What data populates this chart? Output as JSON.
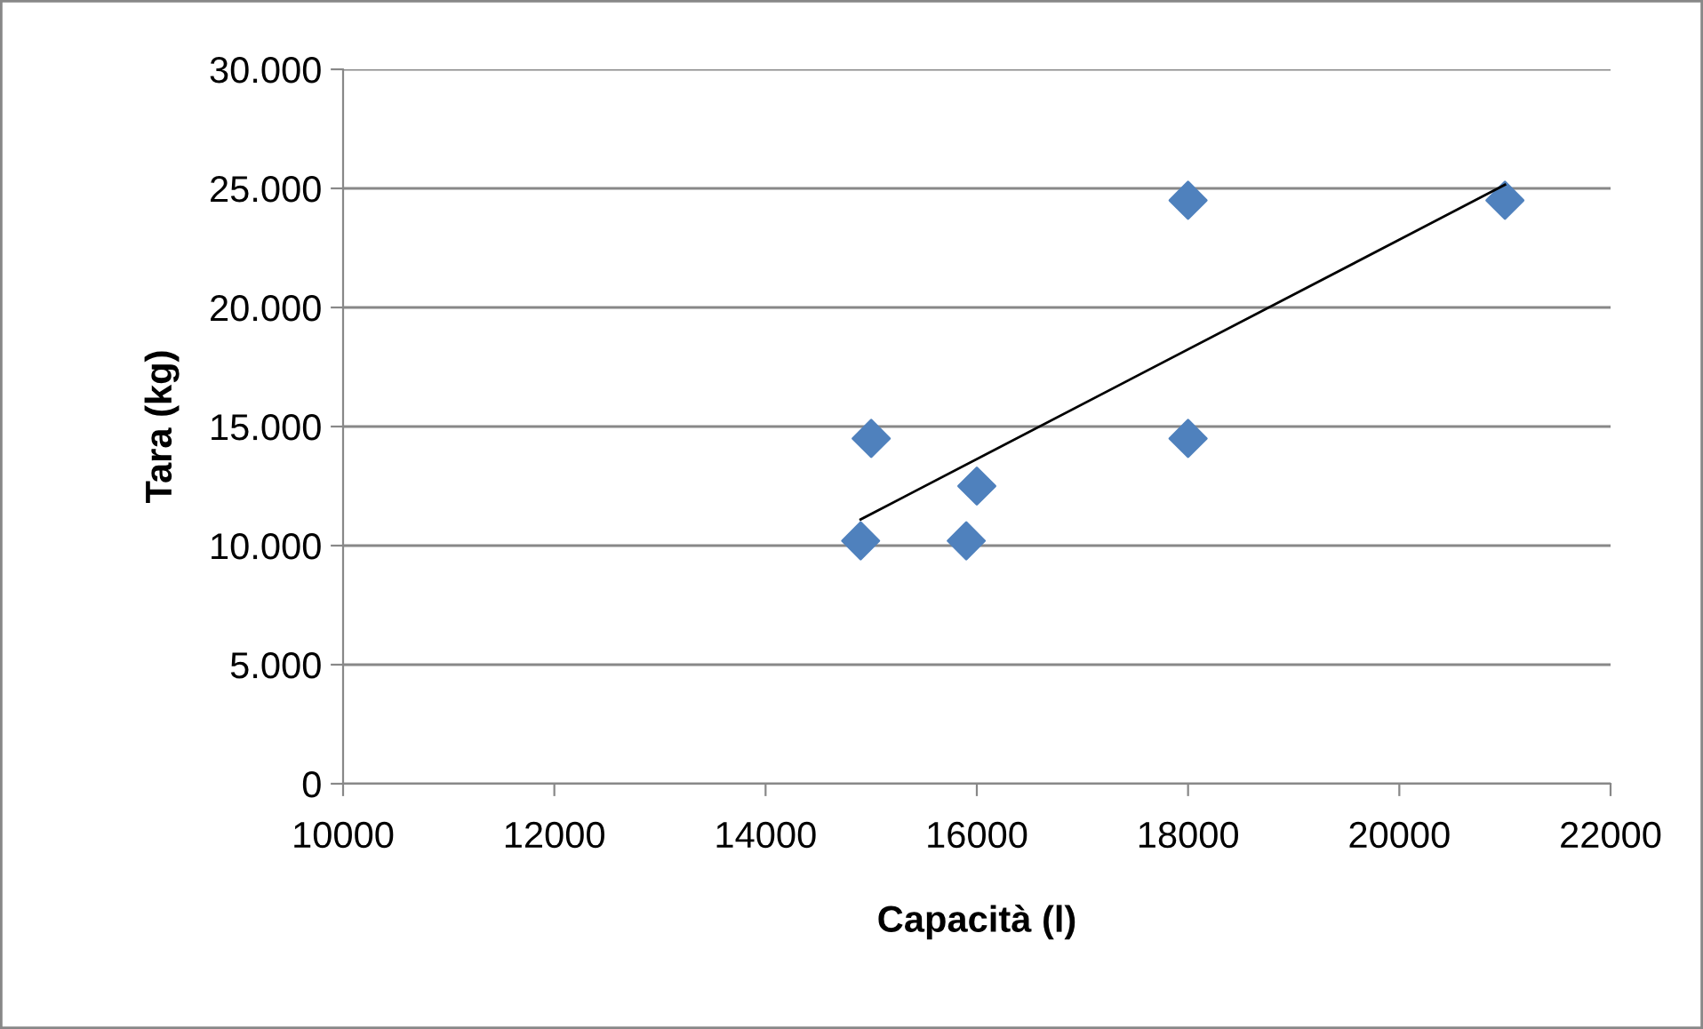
{
  "chart_data": {
    "type": "scatter",
    "xlabel": "Capacità (l)",
    "ylabel": "Tara (kg)",
    "series": [
      {
        "color": "#4f81bd",
        "marker": "diamond",
        "x": [
          14900,
          15000,
          15900,
          16000,
          18000,
          18000,
          21000
        ],
        "values": [
          10200,
          14500,
          10200,
          12500,
          14500,
          24500,
          24500
        ]
      },
      {
        "type": "line",
        "color": "#000000",
        "marker": "none",
        "line_style": "solid",
        "x": [
          14900,
          21000
        ],
        "values": [
          11100,
          25150
        ]
      }
    ],
    "xlim": [
      10000,
      22000
    ],
    "xticks": [
      10000,
      12000,
      14000,
      16000,
      18000,
      20000,
      22000
    ],
    "ylim": [
      0,
      30000
    ],
    "yticks": [
      0,
      {
        "value": 5000,
        "label": "5.000"
      },
      {
        "value": 10000,
        "label": "10.000"
      },
      {
        "value": 15000,
        "label": "15.000"
      },
      {
        "value": 20000,
        "label": "20.000"
      },
      {
        "value": 25000,
        "label": "25.000"
      },
      {
        "value": 30000,
        "label": "30.000"
      }
    ],
    "grid": "y",
    "legend": false
  }
}
